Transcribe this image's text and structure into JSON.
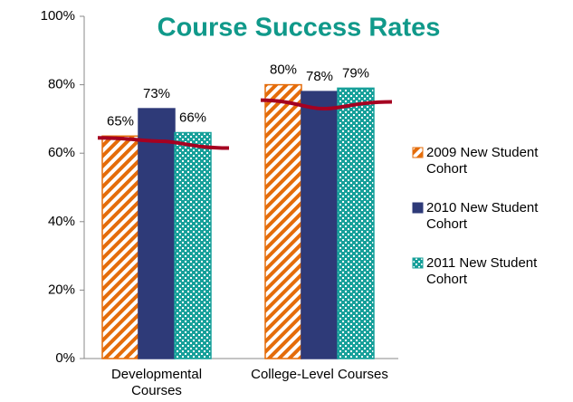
{
  "chart_data": {
    "type": "bar",
    "title": "Course Success Rates",
    "categories": [
      "Developmental Courses",
      "College-Level Courses"
    ],
    "series": [
      {
        "name": "2009 New Student Cohort",
        "color": "#e46c0a",
        "values": [
          65,
          80
        ],
        "value_labels": [
          "65%",
          "80%"
        ]
      },
      {
        "name": "2010 New Student Cohort",
        "color": "#2e3a78",
        "values": [
          73,
          78
        ],
        "value_labels": [
          "73%",
          "78%"
        ]
      },
      {
        "name": "2011 New Student Cohort",
        "color": "#17a09a",
        "values": [
          66,
          79
        ],
        "value_labels": [
          "66%",
          "79%"
        ]
      }
    ],
    "line": {
      "color": "#a50021",
      "values": [
        [
          64.5,
          63.5,
          61.5
        ],
        [
          75.5,
          73,
          75
        ]
      ]
    },
    "ylim": [
      0,
      100
    ],
    "yticks": [
      {
        "value": 0,
        "label": "0%"
      },
      {
        "value": 20,
        "label": "20%"
      },
      {
        "value": 40,
        "label": "40%"
      },
      {
        "value": 60,
        "label": "60%"
      },
      {
        "value": 80,
        "label": "80%"
      },
      {
        "value": 100,
        "label": "100%"
      }
    ],
    "legend": "right"
  }
}
